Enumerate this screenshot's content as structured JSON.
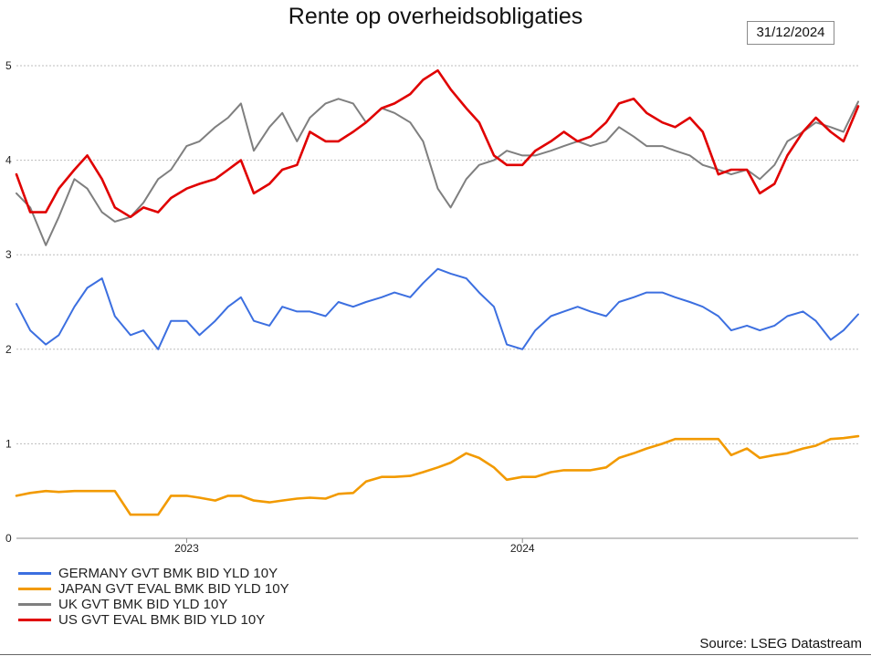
{
  "title": "Rente op overheidsobligaties",
  "date_label": "31/12/2024",
  "source": "Source: LSEG Datastream",
  "chart_data": {
    "type": "line",
    "title": "Rente op overheidsobligaties",
    "xlabel": "",
    "ylabel": "",
    "ylim": [
      0,
      5
    ],
    "xlim": [
      "2022-06-30",
      "2024-12-31"
    ],
    "yticks": [
      0,
      1,
      2,
      3,
      4,
      5
    ],
    "xticks": [
      {
        "label": "2023",
        "x": "2023-01-01"
      },
      {
        "label": "2024",
        "x": "2024-01-01"
      }
    ],
    "grid": true,
    "legend_position": "bottom-left",
    "series": [
      {
        "name": "GERMANY GVT BMK BID YLD 10Y",
        "color": "#3c6fe0",
        "x": [
          "2022-06-30",
          "2022-07-15",
          "2022-08-01",
          "2022-08-15",
          "2022-09-01",
          "2022-09-15",
          "2022-10-01",
          "2022-10-15",
          "2022-11-01",
          "2022-11-15",
          "2022-12-01",
          "2022-12-15",
          "2023-01-01",
          "2023-01-15",
          "2023-02-01",
          "2023-02-15",
          "2023-03-01",
          "2023-03-15",
          "2023-04-01",
          "2023-04-15",
          "2023-05-01",
          "2023-05-15",
          "2023-06-01",
          "2023-06-15",
          "2023-07-01",
          "2023-07-15",
          "2023-08-01",
          "2023-08-15",
          "2023-09-01",
          "2023-09-15",
          "2023-10-01",
          "2023-10-15",
          "2023-11-01",
          "2023-11-15",
          "2023-12-01",
          "2023-12-15",
          "2024-01-01",
          "2024-01-15",
          "2024-02-01",
          "2024-02-15",
          "2024-03-01",
          "2024-03-15",
          "2024-04-01",
          "2024-04-15",
          "2024-05-01",
          "2024-05-15",
          "2024-06-01",
          "2024-06-15",
          "2024-07-01",
          "2024-07-15",
          "2024-08-01",
          "2024-08-15",
          "2024-09-01",
          "2024-09-15",
          "2024-10-01",
          "2024-10-15",
          "2024-11-01",
          "2024-11-15",
          "2024-12-01",
          "2024-12-15",
          "2024-12-31"
        ],
        "values": [
          2.48,
          2.2,
          2.05,
          2.15,
          2.45,
          2.65,
          2.75,
          2.35,
          2.15,
          2.2,
          2.0,
          2.3,
          2.3,
          2.15,
          2.3,
          2.45,
          2.55,
          2.3,
          2.25,
          2.45,
          2.4,
          2.4,
          2.35,
          2.5,
          2.45,
          2.5,
          2.55,
          2.6,
          2.55,
          2.7,
          2.85,
          2.8,
          2.75,
          2.6,
          2.45,
          2.05,
          2.0,
          2.2,
          2.35,
          2.4,
          2.45,
          2.4,
          2.35,
          2.5,
          2.55,
          2.6,
          2.6,
          2.55,
          2.5,
          2.45,
          2.35,
          2.2,
          2.25,
          2.2,
          2.25,
          2.35,
          2.4,
          2.3,
          2.1,
          2.2,
          2.37
        ]
      },
      {
        "name": "JAPAN GVT EVAL BMK BID YLD 10Y",
        "color": "#f29a00",
        "x": [
          "2022-06-30",
          "2022-07-15",
          "2022-08-01",
          "2022-08-15",
          "2022-09-01",
          "2022-09-15",
          "2022-10-01",
          "2022-10-15",
          "2022-11-01",
          "2022-11-15",
          "2022-12-01",
          "2022-12-15",
          "2023-01-01",
          "2023-01-15",
          "2023-02-01",
          "2023-02-15",
          "2023-03-01",
          "2023-03-15",
          "2023-04-01",
          "2023-04-15",
          "2023-05-01",
          "2023-05-15",
          "2023-06-01",
          "2023-06-15",
          "2023-07-01",
          "2023-07-15",
          "2023-08-01",
          "2023-08-15",
          "2023-09-01",
          "2023-09-15",
          "2023-10-01",
          "2023-10-15",
          "2023-11-01",
          "2023-11-15",
          "2023-12-01",
          "2023-12-15",
          "2024-01-01",
          "2024-01-15",
          "2024-02-01",
          "2024-02-15",
          "2024-03-01",
          "2024-03-15",
          "2024-04-01",
          "2024-04-15",
          "2024-05-01",
          "2024-05-15",
          "2024-06-01",
          "2024-06-15",
          "2024-07-01",
          "2024-07-15",
          "2024-08-01",
          "2024-08-15",
          "2024-09-01",
          "2024-09-15",
          "2024-10-01",
          "2024-10-15",
          "2024-11-01",
          "2024-11-15",
          "2024-12-01",
          "2024-12-15",
          "2024-12-31"
        ],
        "values": [
          0.45,
          0.48,
          0.5,
          0.49,
          0.5,
          0.5,
          0.5,
          0.5,
          0.25,
          0.25,
          0.25,
          0.45,
          0.45,
          0.43,
          0.4,
          0.45,
          0.45,
          0.4,
          0.38,
          0.4,
          0.42,
          0.43,
          0.42,
          0.47,
          0.48,
          0.6,
          0.65,
          0.65,
          0.66,
          0.7,
          0.75,
          0.8,
          0.9,
          0.85,
          0.75,
          0.62,
          0.65,
          0.65,
          0.7,
          0.72,
          0.72,
          0.72,
          0.75,
          0.85,
          0.9,
          0.95,
          1.0,
          1.05,
          1.05,
          1.05,
          1.05,
          0.88,
          0.95,
          0.85,
          0.88,
          0.9,
          0.95,
          0.98,
          1.05,
          1.06,
          1.08
        ]
      },
      {
        "name": "UK GVT BMK BID YLD 10Y",
        "color": "#7f7f7f",
        "x": [
          "2022-06-30",
          "2022-07-15",
          "2022-08-01",
          "2022-08-15",
          "2022-09-01",
          "2022-09-15",
          "2022-10-01",
          "2022-10-15",
          "2022-11-01",
          "2022-11-15",
          "2022-12-01",
          "2022-12-15",
          "2023-01-01",
          "2023-01-15",
          "2023-02-01",
          "2023-02-15",
          "2023-03-01",
          "2023-03-15",
          "2023-04-01",
          "2023-04-15",
          "2023-05-01",
          "2023-05-15",
          "2023-06-01",
          "2023-06-15",
          "2023-07-01",
          "2023-07-15",
          "2023-08-01",
          "2023-08-15",
          "2023-09-01",
          "2023-09-15",
          "2023-10-01",
          "2023-10-15",
          "2023-11-01",
          "2023-11-15",
          "2023-12-01",
          "2023-12-15",
          "2024-01-01",
          "2024-01-15",
          "2024-02-01",
          "2024-02-15",
          "2024-03-01",
          "2024-03-15",
          "2024-04-01",
          "2024-04-15",
          "2024-05-01",
          "2024-05-15",
          "2024-06-01",
          "2024-06-15",
          "2024-07-01",
          "2024-07-15",
          "2024-08-01",
          "2024-08-15",
          "2024-09-01",
          "2024-09-15",
          "2024-10-01",
          "2024-10-15",
          "2024-11-01",
          "2024-11-15",
          "2024-12-01",
          "2024-12-15",
          "2024-12-31"
        ],
        "values": [
          3.65,
          3.5,
          3.1,
          3.4,
          3.8,
          3.7,
          3.45,
          3.35,
          3.4,
          3.55,
          3.8,
          3.9,
          4.15,
          4.2,
          4.35,
          4.45,
          4.6,
          4.1,
          4.35,
          4.5,
          4.2,
          4.45,
          4.6,
          4.65,
          4.6,
          4.4,
          4.55,
          4.5,
          4.4,
          4.2,
          3.7,
          3.5,
          3.8,
          3.95,
          4.0,
          4.1,
          4.05,
          4.05,
          4.1,
          4.15,
          4.2,
          4.15,
          4.2,
          4.35,
          4.25,
          4.15,
          4.15,
          4.1,
          4.05,
          3.95,
          3.9,
          3.85,
          3.9,
          3.8,
          3.95,
          4.2,
          4.3,
          4.4,
          4.35,
          4.3,
          4.62
        ]
      },
      {
        "name": "US GVT EVAL BMK BID YLD 10Y",
        "color": "#e00000",
        "x": [
          "2022-06-30",
          "2022-07-15",
          "2022-08-01",
          "2022-08-15",
          "2022-09-01",
          "2022-09-15",
          "2022-10-01",
          "2022-10-15",
          "2022-11-01",
          "2022-11-15",
          "2022-12-01",
          "2022-12-15",
          "2023-01-01",
          "2023-01-15",
          "2023-02-01",
          "2023-02-15",
          "2023-03-01",
          "2023-03-15",
          "2023-04-01",
          "2023-04-15",
          "2023-05-01",
          "2023-05-15",
          "2023-06-01",
          "2023-06-15",
          "2023-07-01",
          "2023-07-15",
          "2023-08-01",
          "2023-08-15",
          "2023-09-01",
          "2023-09-15",
          "2023-10-01",
          "2023-10-15",
          "2023-11-01",
          "2023-11-15",
          "2023-12-01",
          "2023-12-15",
          "2024-01-01",
          "2024-01-15",
          "2024-02-01",
          "2024-02-15",
          "2024-03-01",
          "2024-03-15",
          "2024-04-01",
          "2024-04-15",
          "2024-05-01",
          "2024-05-15",
          "2024-06-01",
          "2024-06-15",
          "2024-07-01",
          "2024-07-15",
          "2024-08-01",
          "2024-08-15",
          "2024-09-01",
          "2024-09-15",
          "2024-10-01",
          "2024-10-15",
          "2024-11-01",
          "2024-11-15",
          "2024-12-01",
          "2024-12-15",
          "2024-12-31"
        ],
        "values": [
          3.85,
          3.45,
          3.45,
          3.7,
          3.9,
          4.05,
          3.8,
          3.5,
          3.4,
          3.5,
          3.45,
          3.6,
          3.7,
          3.75,
          3.8,
          3.9,
          4.0,
          3.65,
          3.75,
          3.9,
          3.95,
          4.3,
          4.2,
          4.2,
          4.3,
          4.4,
          4.55,
          4.6,
          4.7,
          4.85,
          4.95,
          4.75,
          4.55,
          4.4,
          4.05,
          3.95,
          3.95,
          4.1,
          4.2,
          4.3,
          4.2,
          4.25,
          4.4,
          4.6,
          4.65,
          4.5,
          4.4,
          4.35,
          4.45,
          4.3,
          3.85,
          3.9,
          3.9,
          3.65,
          3.75,
          4.05,
          4.3,
          4.45,
          4.3,
          4.2,
          4.57
        ]
      }
    ]
  }
}
